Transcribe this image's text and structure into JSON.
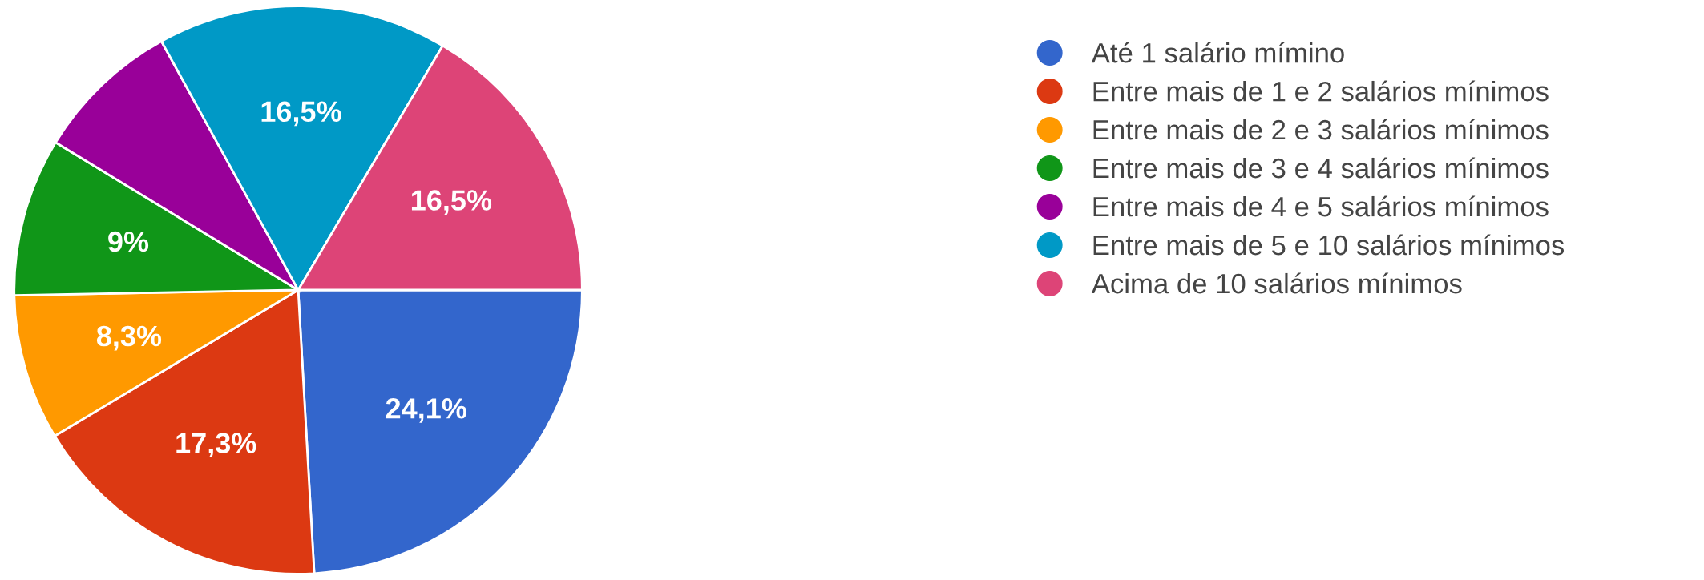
{
  "chart_data": {
    "type": "pie",
    "categories": [
      "Até 1 salário mímino",
      "Entre mais de 1 e 2 salários mínimos",
      "Entre mais de 2 e 3 salários mínimos",
      "Entre mais de 3 e 4 salários mínimos",
      "Entre mais de 4 e 5 salários mínimos",
      "Entre mais de 5 e 10 salários mínimos",
      "Acima de 10 salários mínimos"
    ],
    "values": [
      24.1,
      17.3,
      8.3,
      9,
      8.3,
      16.5,
      16.5
    ],
    "colors": [
      "#3366cc",
      "#dc3912",
      "#ff9900",
      "#109618",
      "#990099",
      "#0099c6",
      "#dd4477"
    ],
    "value_labels": [
      "24,1%",
      "17,3%",
      "8,3%",
      "9%",
      null,
      "16,5%",
      "16,5%"
    ],
    "legend": "right"
  }
}
